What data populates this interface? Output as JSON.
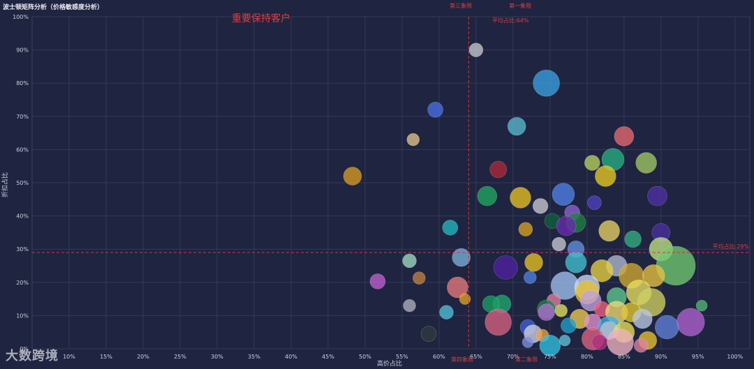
{
  "title": "波士顿矩阵分析（价格敏感度分析）",
  "logo_text": "大数跨境",
  "chart_data": {
    "type": "scatter",
    "subtype": "bubble",
    "title": "波士顿矩阵分析（价格敏感度分析）",
    "xlabel": "高价占比",
    "ylabel": "折扣占比",
    "xlim": [
      0.05,
      1.02
    ],
    "ylim": [
      0,
      1.0
    ],
    "x_ticks": [
      {
        "v": 0.1,
        "label": "10%"
      },
      {
        "v": 0.15,
        "label": "15%"
      },
      {
        "v": 0.2,
        "label": "20%"
      },
      {
        "v": 0.25,
        "label": "25%"
      },
      {
        "v": 0.3,
        "label": "30%"
      },
      {
        "v": 0.35,
        "label": "35%"
      },
      {
        "v": 0.4,
        "label": "40%"
      },
      {
        "v": 0.45,
        "label": "45%"
      },
      {
        "v": 0.5,
        "label": "50%"
      },
      {
        "v": 0.55,
        "label": "55%"
      },
      {
        "v": 0.6,
        "label": "60%"
      },
      {
        "v": 0.65,
        "label": "65%"
      },
      {
        "v": 0.7,
        "label": "70%"
      },
      {
        "v": 0.75,
        "label": "75%"
      },
      {
        "v": 0.8,
        "label": "80%"
      },
      {
        "v": 0.85,
        "label": "85%"
      },
      {
        "v": 0.9,
        "label": "90%"
      },
      {
        "v": 0.95,
        "label": "95%"
      },
      {
        "v": 1.0,
        "label": "100%"
      }
    ],
    "y_ticks": [
      {
        "v": 0.0,
        "label": "0%"
      },
      {
        "v": 0.1,
        "label": "10%"
      },
      {
        "v": 0.2,
        "label": "20%"
      },
      {
        "v": 0.3,
        "label": "30%"
      },
      {
        "v": 0.4,
        "label": "40%"
      },
      {
        "v": 0.5,
        "label": "50%"
      },
      {
        "v": 0.6,
        "label": "60%"
      },
      {
        "v": 0.7,
        "label": "70%"
      },
      {
        "v": 0.8,
        "label": "80%"
      },
      {
        "v": 0.9,
        "label": "90%"
      },
      {
        "v": 1.0,
        "label": "100%"
      }
    ],
    "grid": true,
    "avg_x": 0.64,
    "avg_y": 0.29,
    "avg_x_label": "平均占比:64%",
    "avg_y_label": "平均占比:29%",
    "line_color": "#d03a3a",
    "quadrant_labels": {
      "top_left": "第三象限",
      "top_right": "第一象限",
      "bottom_left": "第四象限",
      "bottom_right": "第二象限"
    },
    "annotation": "重要保持客户",
    "points": [
      {
        "x": 0.65,
        "y": 0.9,
        "size": 10,
        "color": "#c8c8cc"
      },
      {
        "x": 0.745,
        "y": 0.8,
        "size": 19,
        "color": "#3a9fe0"
      },
      {
        "x": 0.595,
        "y": 0.72,
        "size": 11,
        "color": "#4a6ee0"
      },
      {
        "x": 0.705,
        "y": 0.67,
        "size": 13,
        "color": "#5ab8d0"
      },
      {
        "x": 0.565,
        "y": 0.63,
        "size": 9,
        "color": "#e8c088"
      },
      {
        "x": 0.85,
        "y": 0.64,
        "size": 14,
        "color": "#e86870"
      },
      {
        "x": 0.483,
        "y": 0.52,
        "size": 13,
        "color": "#d89a20"
      },
      {
        "x": 0.68,
        "y": 0.54,
        "size": 12,
        "color": "#b02838"
      },
      {
        "x": 0.835,
        "y": 0.57,
        "size": 16,
        "color": "#28b080"
      },
      {
        "x": 0.807,
        "y": 0.56,
        "size": 11,
        "color": "#b8d060"
      },
      {
        "x": 0.88,
        "y": 0.56,
        "size": 15,
        "color": "#a0c860"
      },
      {
        "x": 0.825,
        "y": 0.52,
        "size": 15,
        "color": "#e8c820"
      },
      {
        "x": 0.665,
        "y": 0.46,
        "size": 14,
        "color": "#20a860"
      },
      {
        "x": 0.71,
        "y": 0.455,
        "size": 15,
        "color": "#e8c020"
      },
      {
        "x": 0.768,
        "y": 0.465,
        "size": 16,
        "color": "#5080e8"
      },
      {
        "x": 0.895,
        "y": 0.46,
        "size": 14,
        "color": "#5030a0"
      },
      {
        "x": 0.737,
        "y": 0.43,
        "size": 11,
        "color": "#c8c8d0"
      },
      {
        "x": 0.81,
        "y": 0.44,
        "size": 10,
        "color": "#5040c0"
      },
      {
        "x": 0.78,
        "y": 0.41,
        "size": 11,
        "color": "#9060d0"
      },
      {
        "x": 0.785,
        "y": 0.38,
        "size": 14,
        "color": "#208040"
      },
      {
        "x": 0.753,
        "y": 0.385,
        "size": 11,
        "color": "#106040"
      },
      {
        "x": 0.772,
        "y": 0.37,
        "size": 14,
        "color": "#6a2ab0"
      },
      {
        "x": 0.615,
        "y": 0.365,
        "size": 11,
        "color": "#20b8c0"
      },
      {
        "x": 0.717,
        "y": 0.36,
        "size": 10,
        "color": "#d8a020"
      },
      {
        "x": 0.83,
        "y": 0.355,
        "size": 15,
        "color": "#e8d060"
      },
      {
        "x": 0.9,
        "y": 0.35,
        "size": 13,
        "color": "#4a30a0"
      },
      {
        "x": 0.862,
        "y": 0.33,
        "size": 12,
        "color": "#30b080"
      },
      {
        "x": 0.9,
        "y": 0.3,
        "size": 17,
        "color": "#c0e080"
      },
      {
        "x": 0.762,
        "y": 0.315,
        "size": 10,
        "color": "#c8c8d0"
      },
      {
        "x": 0.785,
        "y": 0.3,
        "size": 12,
        "color": "#6090e0"
      },
      {
        "x": 0.63,
        "y": 0.275,
        "size": 13,
        "color": "#7ab0d8"
      },
      {
        "x": 0.56,
        "y": 0.265,
        "size": 10,
        "color": "#a0d8c0"
      },
      {
        "x": 0.69,
        "y": 0.245,
        "size": 17,
        "color": "#5020a0"
      },
      {
        "x": 0.728,
        "y": 0.26,
        "size": 13,
        "color": "#e8c020"
      },
      {
        "x": 0.785,
        "y": 0.26,
        "size": 15,
        "color": "#40c0d0"
      },
      {
        "x": 0.84,
        "y": 0.25,
        "size": 15,
        "color": "#b0b8d0"
      },
      {
        "x": 0.92,
        "y": 0.25,
        "size": 28,
        "color": "#70c870"
      },
      {
        "x": 0.82,
        "y": 0.235,
        "size": 16,
        "color": "#e8d040"
      },
      {
        "x": 0.86,
        "y": 0.22,
        "size": 18,
        "color": "#d0a830"
      },
      {
        "x": 0.89,
        "y": 0.22,
        "size": 16,
        "color": "#e8c040"
      },
      {
        "x": 0.77,
        "y": 0.19,
        "size": 20,
        "color": "#a0c0f0"
      },
      {
        "x": 0.8,
        "y": 0.185,
        "size": 18,
        "color": "#c8d8f8"
      },
      {
        "x": 0.573,
        "y": 0.213,
        "size": 9,
        "color": "#c08040"
      },
      {
        "x": 0.517,
        "y": 0.203,
        "size": 11,
        "color": "#c060d0"
      },
      {
        "x": 0.625,
        "y": 0.185,
        "size": 15,
        "color": "#e87878"
      },
      {
        "x": 0.723,
        "y": 0.215,
        "size": 9,
        "color": "#5080e0"
      },
      {
        "x": 0.8,
        "y": 0.17,
        "size": 17,
        "color": "#e8c030"
      },
      {
        "x": 0.87,
        "y": 0.17,
        "size": 18,
        "color": "#e8e060"
      },
      {
        "x": 0.84,
        "y": 0.155,
        "size": 14,
        "color": "#60c890"
      },
      {
        "x": 0.805,
        "y": 0.145,
        "size": 15,
        "color": "#c0a0e0"
      },
      {
        "x": 0.755,
        "y": 0.145,
        "size": 10,
        "color": "#e080a0"
      },
      {
        "x": 0.887,
        "y": 0.14,
        "size": 20,
        "color": "#d0d060"
      },
      {
        "x": 0.685,
        "y": 0.135,
        "size": 13,
        "color": "#20a870"
      },
      {
        "x": 0.67,
        "y": 0.135,
        "size": 12,
        "color": "#18a060"
      },
      {
        "x": 0.635,
        "y": 0.15,
        "size": 8,
        "color": "#e0a020"
      },
      {
        "x": 0.61,
        "y": 0.11,
        "size": 10,
        "color": "#50c0d8"
      },
      {
        "x": 0.56,
        "y": 0.13,
        "size": 9,
        "color": "#b0b0b8"
      },
      {
        "x": 0.68,
        "y": 0.08,
        "size": 19,
        "color": "#d86080"
      },
      {
        "x": 0.745,
        "y": 0.12,
        "size": 13,
        "color": "#208050"
      },
      {
        "x": 0.745,
        "y": 0.11,
        "size": 12,
        "color": "#b070d0"
      },
      {
        "x": 0.765,
        "y": 0.115,
        "size": 9,
        "color": "#e0e060"
      },
      {
        "x": 0.82,
        "y": 0.12,
        "size": 11,
        "color": "#f06080"
      },
      {
        "x": 0.84,
        "y": 0.11,
        "size": 16,
        "color": "#f0d870"
      },
      {
        "x": 0.86,
        "y": 0.11,
        "size": 14,
        "color": "#e0c830"
      },
      {
        "x": 0.875,
        "y": 0.09,
        "size": 14,
        "color": "#b8c8e0"
      },
      {
        "x": 0.955,
        "y": 0.13,
        "size": 8,
        "color": "#50b870"
      },
      {
        "x": 0.94,
        "y": 0.08,
        "size": 20,
        "color": "#b060d0"
      },
      {
        "x": 0.908,
        "y": 0.065,
        "size": 17,
        "color": "#6080d8"
      },
      {
        "x": 0.79,
        "y": 0.09,
        "size": 14,
        "color": "#f0c850"
      },
      {
        "x": 0.808,
        "y": 0.08,
        "size": 12,
        "color": "#e090d0"
      },
      {
        "x": 0.83,
        "y": 0.065,
        "size": 16,
        "color": "#40b0e0"
      },
      {
        "x": 0.775,
        "y": 0.07,
        "size": 11,
        "color": "#20a0c8"
      },
      {
        "x": 0.72,
        "y": 0.065,
        "size": 11,
        "color": "#4060d0"
      },
      {
        "x": 0.727,
        "y": 0.045,
        "size": 13,
        "color": "#d0d0e0"
      },
      {
        "x": 0.74,
        "y": 0.04,
        "size": 9,
        "color": "#f0a040"
      },
      {
        "x": 0.83,
        "y": 0.055,
        "size": 13,
        "color": "#c0c0d0"
      },
      {
        "x": 0.85,
        "y": 0.05,
        "size": 15,
        "color": "#e8e050"
      },
      {
        "x": 0.808,
        "y": 0.03,
        "size": 16,
        "color": "#e06080"
      },
      {
        "x": 0.817,
        "y": 0.02,
        "size": 11,
        "color": "#b03080"
      },
      {
        "x": 0.845,
        "y": 0.02,
        "size": 19,
        "color": "#f0b0c0"
      },
      {
        "x": 0.882,
        "y": 0.025,
        "size": 13,
        "color": "#e8c030"
      },
      {
        "x": 0.873,
        "y": 0.01,
        "size": 10,
        "color": "#e080a0"
      },
      {
        "x": 0.75,
        "y": 0.01,
        "size": 15,
        "color": "#30c0e0"
      },
      {
        "x": 0.72,
        "y": 0.02,
        "size": 8,
        "color": "#8090e0"
      },
      {
        "x": 0.77,
        "y": 0.025,
        "size": 8,
        "color": "#60c0d8"
      },
      {
        "x": 0.586,
        "y": 0.045,
        "size": 11,
        "color": "#303a40"
      }
    ]
  }
}
